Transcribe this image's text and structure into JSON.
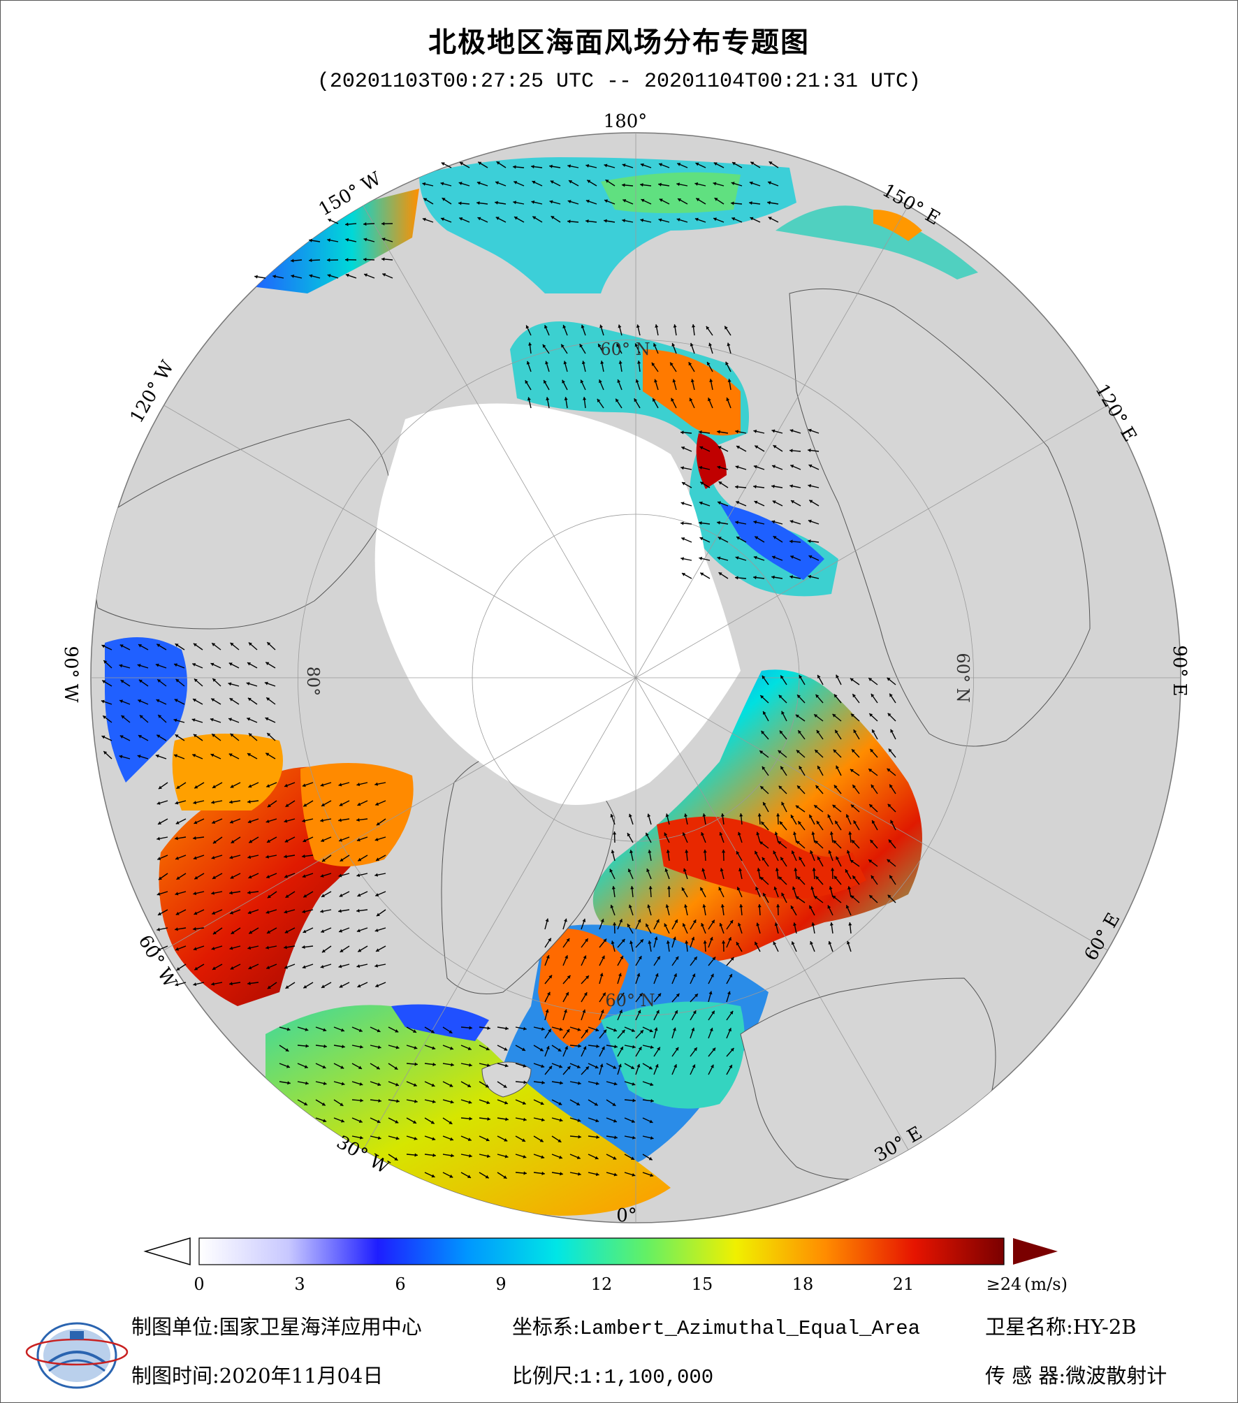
{
  "title": "北极地区海面风场分布专题图",
  "subtitle": "(20201103T00:27:25 UTC -- 20201104T00:21:31 UTC)",
  "map": {
    "projection": "Lambert_Azimuthal_Equal_Area",
    "meridian_labels": {
      "lon_0": "0°",
      "lon_30e": "30° E",
      "lon_60e": "60° E",
      "lon_90e": "90° E",
      "lon_120e": "120° E",
      "lon_150e": "150° E",
      "lon_180": "180°",
      "lon_150w": "150° W",
      "lon_120w": "120° W",
      "lon_90w": "90° W",
      "lon_60w": "60° W",
      "lon_30w": "30° W"
    },
    "parallel_labels": {
      "lat60_a": "60° N",
      "lat60_b": "60° N",
      "lat60_c": "60° N",
      "lat80": "80°"
    },
    "colors": {
      "background_globe": "#d4d4d4",
      "land": "#d6d6d6",
      "ice": "#ffffff",
      "arrow": "#000000"
    }
  },
  "colorbar": {
    "unit": "(m/s)",
    "ticks": [
      "0",
      "3",
      "6",
      "9",
      "12",
      "15",
      "18",
      "21",
      "≥24"
    ],
    "range": [
      0,
      24
    ],
    "stops": [
      "#ffffff",
      "#c8c8ff",
      "#1e1eff",
      "#0096ff",
      "#00e6e6",
      "#64f064",
      "#f0f000",
      "#ff8c00",
      "#e61400",
      "#7a0000"
    ]
  },
  "footer": {
    "unit_label": "制图单位:国家卫星海洋应用中心",
    "crs_label": "坐标系:",
    "crs_value": "Lambert_Azimuthal_Equal_Area",
    "satellite_label": "卫星名称:HY-2B",
    "date_label": "制图时间:2020年11月04日",
    "scale_label": "比例尺:",
    "scale_value": "1:1,100,000",
    "sensor_label": "传 感 器:微波散射计"
  }
}
